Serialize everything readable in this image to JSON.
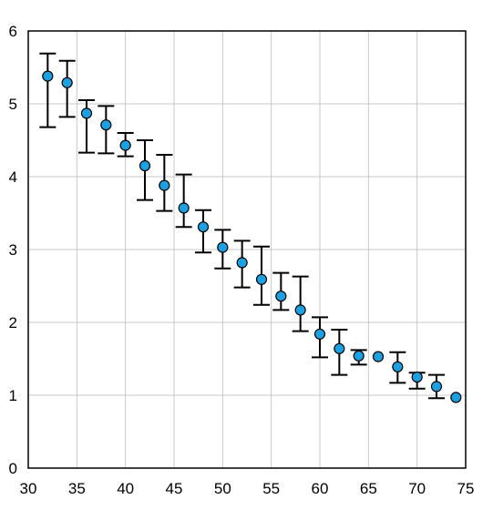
{
  "chart_data": {
    "type": "scatter",
    "title": "",
    "xlabel": "",
    "ylabel": "",
    "xlim": [
      30,
      75
    ],
    "ylim": [
      0,
      6
    ],
    "x_ticks": [
      "30",
      "35",
      "40",
      "45",
      "50",
      "55",
      "60",
      "65",
      "70",
      "75"
    ],
    "y_ticks": [
      "0",
      "1",
      "2",
      "3",
      "4",
      "5",
      "6"
    ],
    "grid": true,
    "colors": {
      "marker_fill": "#1ba1e2",
      "marker_edge": "#000000",
      "error_bar": "#000000",
      "grid": "#c8c8c8",
      "frame": "#000000"
    },
    "series": [
      {
        "points": [
          {
            "x": 32,
            "y": 5.38,
            "err_low": 4.68,
            "err_high": 5.69
          },
          {
            "x": 34,
            "y": 5.29,
            "err_low": 4.82,
            "err_high": 5.59
          },
          {
            "x": 36,
            "y": 4.87,
            "err_low": 4.33,
            "err_high": 5.05
          },
          {
            "x": 38,
            "y": 4.71,
            "err_low": 4.32,
            "err_high": 4.97
          },
          {
            "x": 40,
            "y": 4.43,
            "err_low": 4.28,
            "err_high": 4.6
          },
          {
            "x": 42,
            "y": 4.15,
            "err_low": 3.68,
            "err_high": 4.5
          },
          {
            "x": 44,
            "y": 3.88,
            "err_low": 3.53,
            "err_high": 4.3
          },
          {
            "x": 46,
            "y": 3.57,
            "err_low": 3.31,
            "err_high": 4.03
          },
          {
            "x": 48,
            "y": 3.31,
            "err_low": 2.96,
            "err_high": 3.54
          },
          {
            "x": 50,
            "y": 3.03,
            "err_low": 2.74,
            "err_high": 3.27
          },
          {
            "x": 52,
            "y": 2.82,
            "err_low": 2.48,
            "err_high": 3.12
          },
          {
            "x": 54,
            "y": 2.59,
            "err_low": 2.24,
            "err_high": 3.04
          },
          {
            "x": 56,
            "y": 2.36,
            "err_low": 2.17,
            "err_high": 2.68
          },
          {
            "x": 58,
            "y": 2.17,
            "err_low": 1.88,
            "err_high": 2.63
          },
          {
            "x": 60,
            "y": 1.84,
            "err_low": 1.52,
            "err_high": 2.07
          },
          {
            "x": 62,
            "y": 1.64,
            "err_low": 1.28,
            "err_high": 1.9
          },
          {
            "x": 64,
            "y": 1.54,
            "err_low": 1.42,
            "err_high": 1.62
          },
          {
            "x": 66,
            "y": 1.53,
            "err_low": 1.53,
            "err_high": 1.53
          },
          {
            "x": 68,
            "y": 1.39,
            "err_low": 1.17,
            "err_high": 1.59
          },
          {
            "x": 70,
            "y": 1.25,
            "err_low": 1.09,
            "err_high": 1.31
          },
          {
            "x": 72,
            "y": 1.12,
            "err_low": 0.96,
            "err_high": 1.28
          },
          {
            "x": 74,
            "y": 0.97,
            "err_low": 0.97,
            "err_high": 0.97
          }
        ]
      }
    ]
  }
}
